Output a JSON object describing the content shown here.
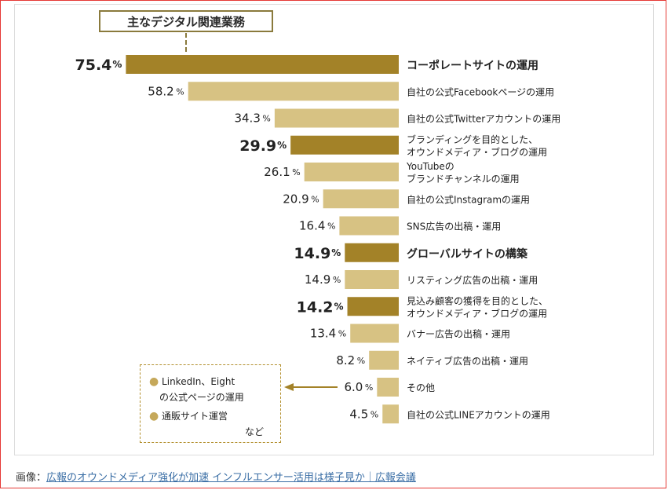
{
  "chart_data": {
    "type": "bar",
    "orientation": "horizontal",
    "title": "主なデジタル関連業務",
    "unit": "%",
    "categories": [
      "コーポレートサイトの運用",
      "自社の公式Facebookページの運用",
      "自社の公式Twitterアカウントの運用",
      "ブランディングを目的とした、\nオウンドメディア・ブログの運用",
      "YouTubeの\nブランドチャンネルの運用",
      "自社の公式Instagramの運用",
      "SNS広告の出稿・運用",
      "グローバルサイトの構築",
      "リスティング広告の出稿・運用",
      "見込み顧客の獲得を目的とした、\nオウンドメディア・ブログの運用",
      "バナー広告の出稿・運用",
      "ネイティブ広告の出稿・運用",
      "その他",
      "自社の公式LINEアカウントの運用"
    ],
    "values": [
      75.4,
      58.2,
      34.3,
      29.9,
      26.1,
      20.9,
      16.4,
      14.9,
      14.9,
      14.2,
      13.4,
      8.2,
      6.0,
      4.5
    ],
    "value_labels": [
      "75.4",
      "58.2",
      "34.3",
      "29.9",
      "26.1",
      "20.9",
      "16.4",
      "14.9",
      "14.9",
      "14.2",
      "13.4",
      "8.2",
      "6.0",
      "4.5"
    ],
    "highlighted": [
      true,
      false,
      false,
      true,
      false,
      false,
      false,
      true,
      false,
      true,
      false,
      false,
      false,
      false
    ],
    "colors": {
      "highlight": "#a38228",
      "normal": "#d7c283"
    }
  },
  "note": {
    "items": [
      "LinkedIn、Eight",
      "の公式ページの運用",
      "通販サイト運営",
      "など"
    ]
  },
  "caption": {
    "prefix": "画像：",
    "link_text": "広報のオウンドメディア強化が加速 インフルエンサー活用は様子見か｜広報会議"
  }
}
